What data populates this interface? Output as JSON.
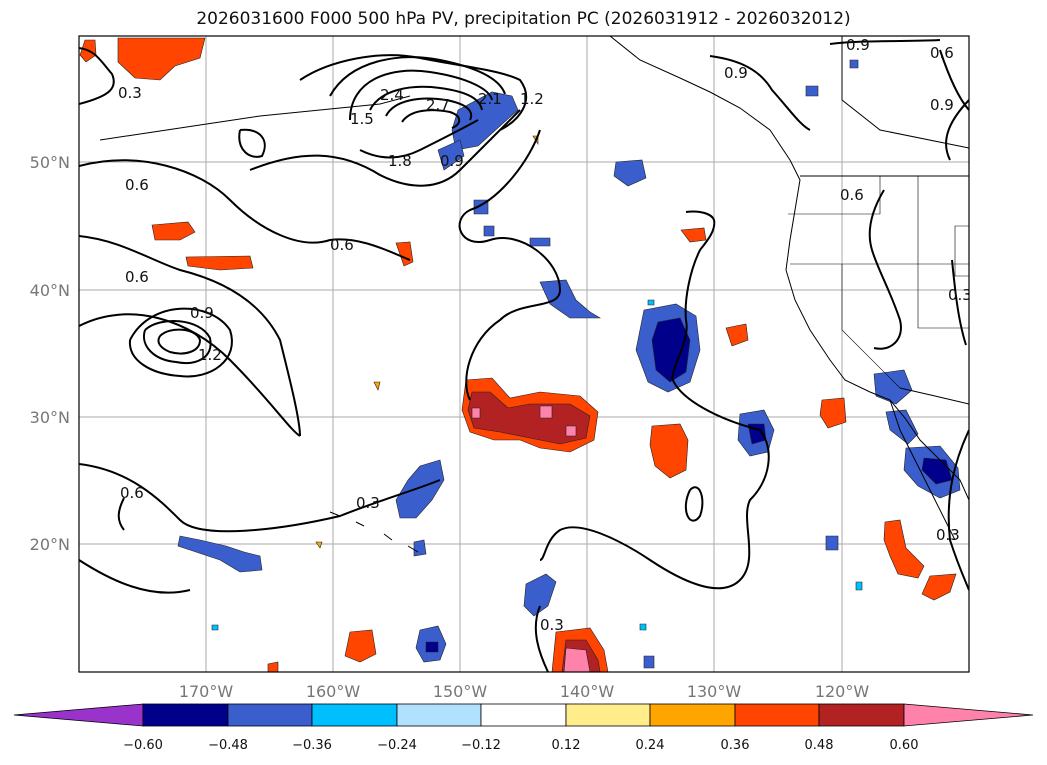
{
  "title": "2026031600 F000 500 hPa PV, precipitation PC (2026031912 - 2026032012)",
  "map": {
    "lon_ticks": [
      "170°W",
      "160°W",
      "150°W",
      "140°W",
      "130°W",
      "120°W"
    ],
    "lat_ticks": [
      "50°N",
      "40°N",
      "30°N",
      "20°N"
    ],
    "gridlines": true
  },
  "colorbar": {
    "ticks": [
      "−0.60",
      "−0.48",
      "−0.36",
      "−0.24",
      "−0.12",
      "0.12",
      "0.24",
      "0.36",
      "0.48",
      "0.60"
    ],
    "colors": [
      "#9933cc",
      "#00008b",
      "#3a5fcd",
      "#00bfff",
      "#b0e2ff",
      "#ffffff",
      "#ffec8b",
      "#ffa500",
      "#ff4500",
      "#b22222",
      "#ff82ab"
    ]
  },
  "contour_labels": [
    "0.3",
    "0.6",
    "0.9",
    "1.2",
    "1.5",
    "1.8",
    "2.1",
    "2.4",
    "2.7"
  ]
}
